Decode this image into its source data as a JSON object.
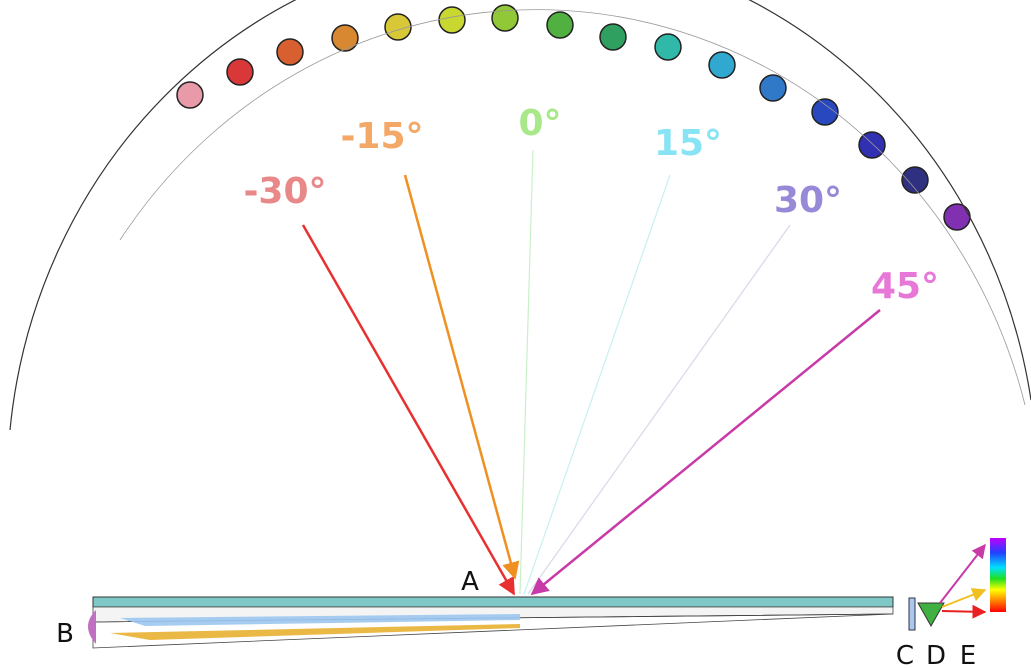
{
  "angle_labels": [
    "-30°",
    "-15°",
    "0°",
    "15°",
    "30°",
    "45°"
  ],
  "point_labels": [
    "A",
    "B",
    "C",
    "D",
    "E"
  ]
}
